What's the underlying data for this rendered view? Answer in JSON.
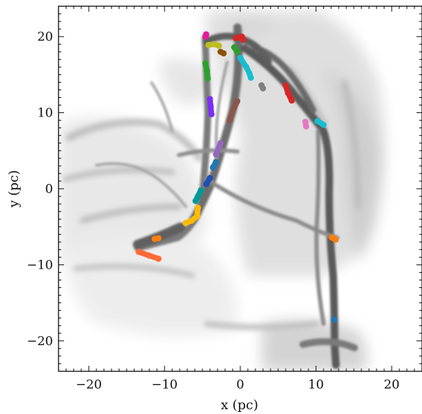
{
  "chart_data": {
    "type": "scatter",
    "title": "",
    "xlabel": "x (pc)",
    "ylabel": "y (pc)",
    "xlim": [
      -24,
      24
    ],
    "ylim": [
      -24,
      24
    ],
    "x_ticks": [
      -20,
      -10,
      0,
      10,
      20
    ],
    "y_ticks": [
      -20,
      -10,
      0,
      10,
      20
    ],
    "x_tick_labels": [
      "−20",
      "−10",
      "0",
      "10",
      "20"
    ],
    "y_tick_labels": [
      "−20",
      "−10",
      "0",
      "10",
      "20"
    ],
    "grid": false,
    "background": "grayscale column density map of filamentary gas",
    "clumps": [
      {
        "color": "#e41a9c",
        "points": [
          [
            -4.6,
            20.0
          ],
          [
            -4.5,
            20.3
          ]
        ]
      },
      {
        "color": "#bcbd22",
        "points": [
          [
            -4.2,
            18.9
          ],
          [
            -3.4,
            19.0
          ],
          [
            -2.8,
            18.8
          ]
        ]
      },
      {
        "color": "#d62728",
        "points": [
          [
            -0.6,
            19.8
          ],
          [
            0.2,
            20.0
          ],
          [
            0.4,
            19.6
          ]
        ]
      },
      {
        "color": "#8c510a",
        "points": [
          [
            -2.6,
            18.0
          ],
          [
            -2.2,
            17.8
          ]
        ]
      },
      {
        "color": "#2ca02c",
        "points": [
          [
            -0.8,
            18.6
          ],
          [
            -0.4,
            18.0
          ]
        ]
      },
      {
        "color": "#2ca02c",
        "points": [
          [
            -4.6,
            16.5
          ],
          [
            -4.4,
            15.5
          ],
          [
            -4.3,
            14.5
          ]
        ]
      },
      {
        "color": "#17becf",
        "points": [
          [
            0.0,
            17.2
          ],
          [
            0.8,
            16.0
          ],
          [
            1.2,
            15.2
          ],
          [
            1.4,
            14.6
          ]
        ]
      },
      {
        "color": "#7f7f7f",
        "points": [
          [
            2.8,
            13.6
          ],
          [
            3.0,
            13.2
          ]
        ]
      },
      {
        "color": "#d62728",
        "points": [
          [
            6.0,
            13.6
          ],
          [
            6.3,
            12.6
          ],
          [
            6.8,
            11.6
          ]
        ]
      },
      {
        "color": "#7b2ff7",
        "points": [
          [
            -4.0,
            11.8
          ],
          [
            -3.9,
            10.8
          ],
          [
            -3.8,
            9.8
          ]
        ]
      },
      {
        "color": "#8c564b",
        "points": [
          [
            -0.4,
            11.5
          ],
          [
            -1.0,
            10.2
          ],
          [
            -1.4,
            9.0
          ]
        ]
      },
      {
        "color": "#e377c2",
        "points": [
          [
            8.6,
            8.8
          ],
          [
            8.7,
            8.2
          ]
        ]
      },
      {
        "color": "#17becf",
        "points": [
          [
            10.2,
            8.9
          ],
          [
            11.0,
            8.4
          ]
        ]
      },
      {
        "color": "#9467bd",
        "points": [
          [
            -2.6,
            6.0
          ],
          [
            -3.2,
            4.5
          ]
        ]
      },
      {
        "color": "#1f77b4",
        "points": [
          [
            -3.2,
            3.5
          ],
          [
            -3.6,
            2.8
          ]
        ]
      },
      {
        "color": "#1f4eb4",
        "points": [
          [
            -4.0,
            1.4
          ],
          [
            -4.5,
            0.6
          ]
        ]
      },
      {
        "color": "#009999",
        "points": [
          [
            -5.2,
            -0.2
          ],
          [
            -5.6,
            -1.0
          ],
          [
            -5.9,
            -1.6
          ]
        ]
      },
      {
        "color": "#ffbb00",
        "points": [
          [
            -5.6,
            -2.5
          ],
          [
            -5.7,
            -3.6
          ],
          [
            -6.4,
            -4.2
          ],
          [
            -7.2,
            -4.5
          ]
        ]
      },
      {
        "color": "#ff7f0e",
        "points": [
          [
            -10.8,
            -6.5
          ],
          [
            -11.3,
            -6.6
          ]
        ]
      },
      {
        "color": "#ff6b35",
        "points": [
          [
            -13.4,
            -8.3
          ],
          [
            -12.0,
            -8.8
          ],
          [
            -10.8,
            -9.2
          ]
        ]
      },
      {
        "color": "#ff7f0e",
        "points": [
          [
            12.1,
            -6.4
          ],
          [
            12.6,
            -6.7
          ]
        ]
      },
      {
        "color": "#1f77b4",
        "points": [
          [
            12.4,
            -17.2
          ]
        ]
      }
    ]
  }
}
